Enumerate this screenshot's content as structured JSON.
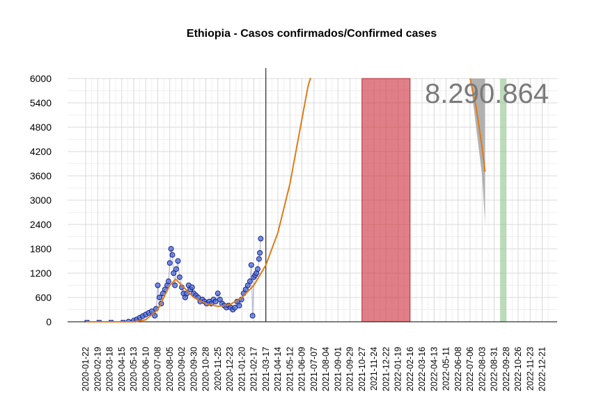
{
  "chart_data": {
    "type": "scatter",
    "title": "Ethiopia - Casos confirmados/Confirmed cases",
    "xlabel": "",
    "ylabel": "",
    "ylim": [
      0,
      6000
    ],
    "yticks": [
      0,
      600,
      1200,
      1800,
      2400,
      3000,
      3600,
      4200,
      4800,
      5400,
      6000
    ],
    "xtick_labels": [
      "2020-01-22",
      "2020-02-19",
      "2020-03-18",
      "2020-04-15",
      "2020-05-13",
      "2020-06-10",
      "2020-07-08",
      "2020-08-05",
      "2020-09-02",
      "2020-09-30",
      "2020-10-28",
      "2020-11-25",
      "2020-12-23",
      "2021-01-20",
      "2021-02-17",
      "2021-03-17",
      "2021-04-14",
      "2021-05-12",
      "2021-06-09",
      "2021-07-07",
      "2021-08-04",
      "2021-09-01",
      "2021-09-29",
      "2021-10-27",
      "2021-11-24",
      "2021-12-22",
      "2022-01-19",
      "2022-02-16",
      "2022-03-16",
      "2022-04-13",
      "2022-05-11",
      "2022-06-08",
      "2022-07-06",
      "2022-08-03",
      "2022-08-31",
      "2022-09-28",
      "2022-10-26",
      "2022-11-23",
      "2022-12-21"
    ],
    "grid": true,
    "total_label": "8.290.864",
    "vertical_line_date": "2021-03-17",
    "red_band": [
      "2021-10-27",
      "2022-02-16"
    ],
    "green_band": [
      "2022-09-14",
      "2022-09-28"
    ],
    "gray_band": {
      "x": [
        "2022-07-06",
        "2022-08-03",
        "2022-08-10"
      ],
      "upper": [
        6000,
        6000,
        6000
      ],
      "lower": [
        6000,
        3600,
        2400
      ]
    },
    "series": [
      {
        "type": "scatter",
        "x": [
          "2020-01-22",
          "2020-02-19",
          "2020-03-18",
          "2020-04-15",
          "2020-05-01",
          "2020-05-13",
          "2020-05-20",
          "2020-05-27",
          "2020-06-03",
          "2020-06-10",
          "2020-06-17",
          "2020-06-24",
          "2020-07-01",
          "2020-07-04",
          "2020-07-08",
          "2020-07-12",
          "2020-07-16",
          "2020-07-20",
          "2020-07-25",
          "2020-07-30",
          "2020-08-02",
          "2020-08-05",
          "2020-08-08",
          "2020-08-11",
          "2020-08-14",
          "2020-08-17",
          "2020-08-20",
          "2020-08-24",
          "2020-08-28",
          "2020-09-02",
          "2020-09-06",
          "2020-09-10",
          "2020-09-14",
          "2020-09-18",
          "2020-09-22",
          "2020-09-26",
          "2020-09-30",
          "2020-10-05",
          "2020-10-10",
          "2020-10-15",
          "2020-10-20",
          "2020-10-25",
          "2020-10-30",
          "2020-11-05",
          "2020-11-10",
          "2020-11-15",
          "2020-11-20",
          "2020-11-25",
          "2020-11-30",
          "2020-12-05",
          "2020-12-10",
          "2020-12-15",
          "2020-12-20",
          "2020-12-25",
          "2020-12-30",
          "2021-01-04",
          "2021-01-09",
          "2021-01-14",
          "2021-01-19",
          "2021-01-24",
          "2021-01-29",
          "2021-02-03",
          "2021-02-08",
          "2021-02-11",
          "2021-02-14",
          "2021-02-17",
          "2021-02-20",
          "2021-02-23",
          "2021-02-26",
          "2021-03-01",
          "2021-03-03",
          "2021-03-05"
        ],
        "values": [
          0,
          0,
          0,
          0,
          5,
          30,
          60,
          100,
          140,
          180,
          220,
          260,
          150,
          320,
          900,
          600,
          450,
          700,
          800,
          900,
          1000,
          1450,
          1800,
          1650,
          1200,
          900,
          1300,
          1500,
          1100,
          850,
          700,
          600,
          700,
          900,
          800,
          850,
          700,
          650,
          600,
          500,
          550,
          500,
          450,
          500,
          450,
          550,
          500,
          700,
          550,
          450,
          400,
          350,
          400,
          350,
          300,
          350,
          500,
          400,
          550,
          700,
          800,
          900,
          1000,
          1400,
          150,
          1100,
          1150,
          1200,
          1300,
          1550,
          1700,
          2050
        ]
      },
      {
        "type": "line",
        "name": "",
        "x": [
          "2020-01-22",
          "2020-03-18",
          "2020-05-13",
          "2020-06-10",
          "2020-07-08",
          "2020-08-05",
          "2020-08-19",
          "2020-09-02",
          "2020-09-30",
          "2020-10-28",
          "2020-11-25",
          "2020-12-23",
          "2021-01-20",
          "2021-02-17",
          "2021-03-17",
          "2021-04-14",
          "2021-05-12",
          "2021-06-09",
          "2021-06-23",
          "2021-07-07"
        ],
        "values": [
          0,
          0,
          0,
          50,
          300,
          900,
          1050,
          900,
          600,
          450,
          380,
          420,
          600,
          900,
          1400,
          2200,
          3400,
          5000,
          5800,
          6300
        ]
      },
      {
        "type": "line",
        "name": "",
        "x": [
          "2022-07-06",
          "2022-07-20",
          "2022-08-03",
          "2022-08-10"
        ],
        "values": [
          6000,
          5300,
          4300,
          3700
        ]
      }
    ]
  }
}
